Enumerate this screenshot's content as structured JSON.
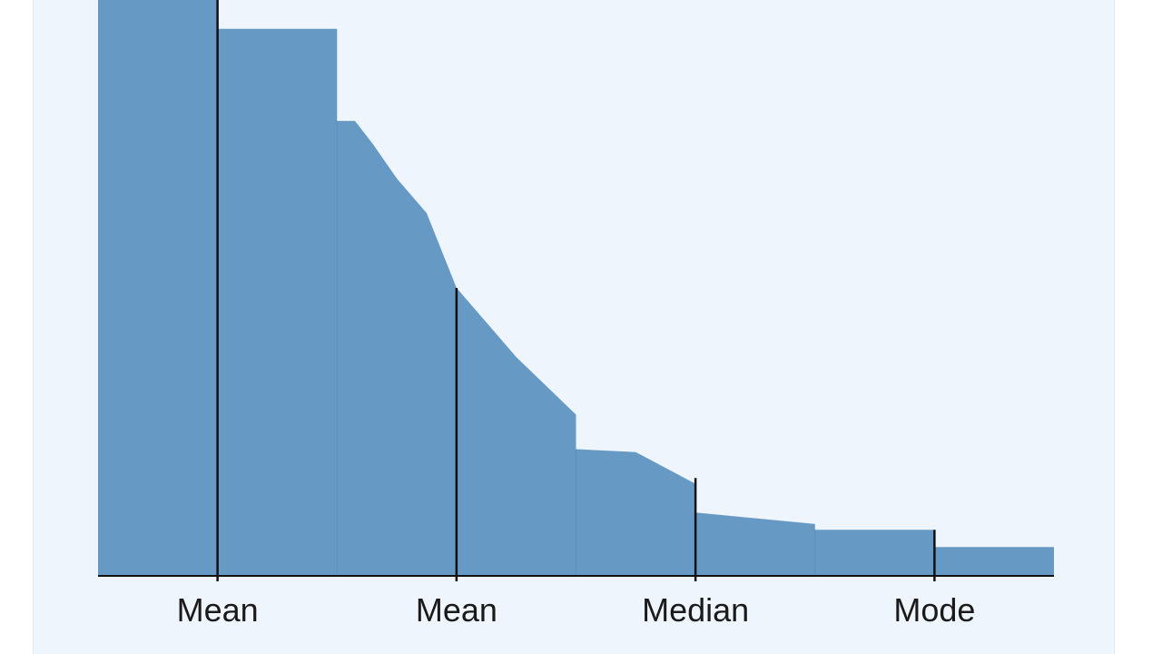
{
  "chart_data": {
    "type": "area",
    "title": "",
    "xlabel": "",
    "ylabel": "",
    "x_range": [
      0,
      8
    ],
    "y_range": [
      0,
      100
    ],
    "grid": false,
    "x": [
      0,
      1,
      1,
      2,
      2,
      2.15,
      2.3,
      2.5,
      2.75,
      3,
      3.25,
      3.5,
      4,
      4,
      4.5,
      5,
      5,
      6,
      6,
      7,
      7,
      8
    ],
    "values": [
      100,
      100,
      95,
      95,
      79,
      79,
      75,
      69,
      63,
      50,
      44,
      38,
      28,
      22,
      21.5,
      16,
      11,
      9,
      8,
      8,
      5,
      5
    ],
    "fill_color": "#6699c4",
    "axis_color": "#111111",
    "markers": [
      {
        "label": "Mean",
        "x": 1,
        "top": 100
      },
      {
        "label": "Mean",
        "x": 3,
        "top": 50
      },
      {
        "label": "Median",
        "x": 5,
        "top": 17
      },
      {
        "label": "Mode",
        "x": 7,
        "top": 8
      }
    ]
  }
}
